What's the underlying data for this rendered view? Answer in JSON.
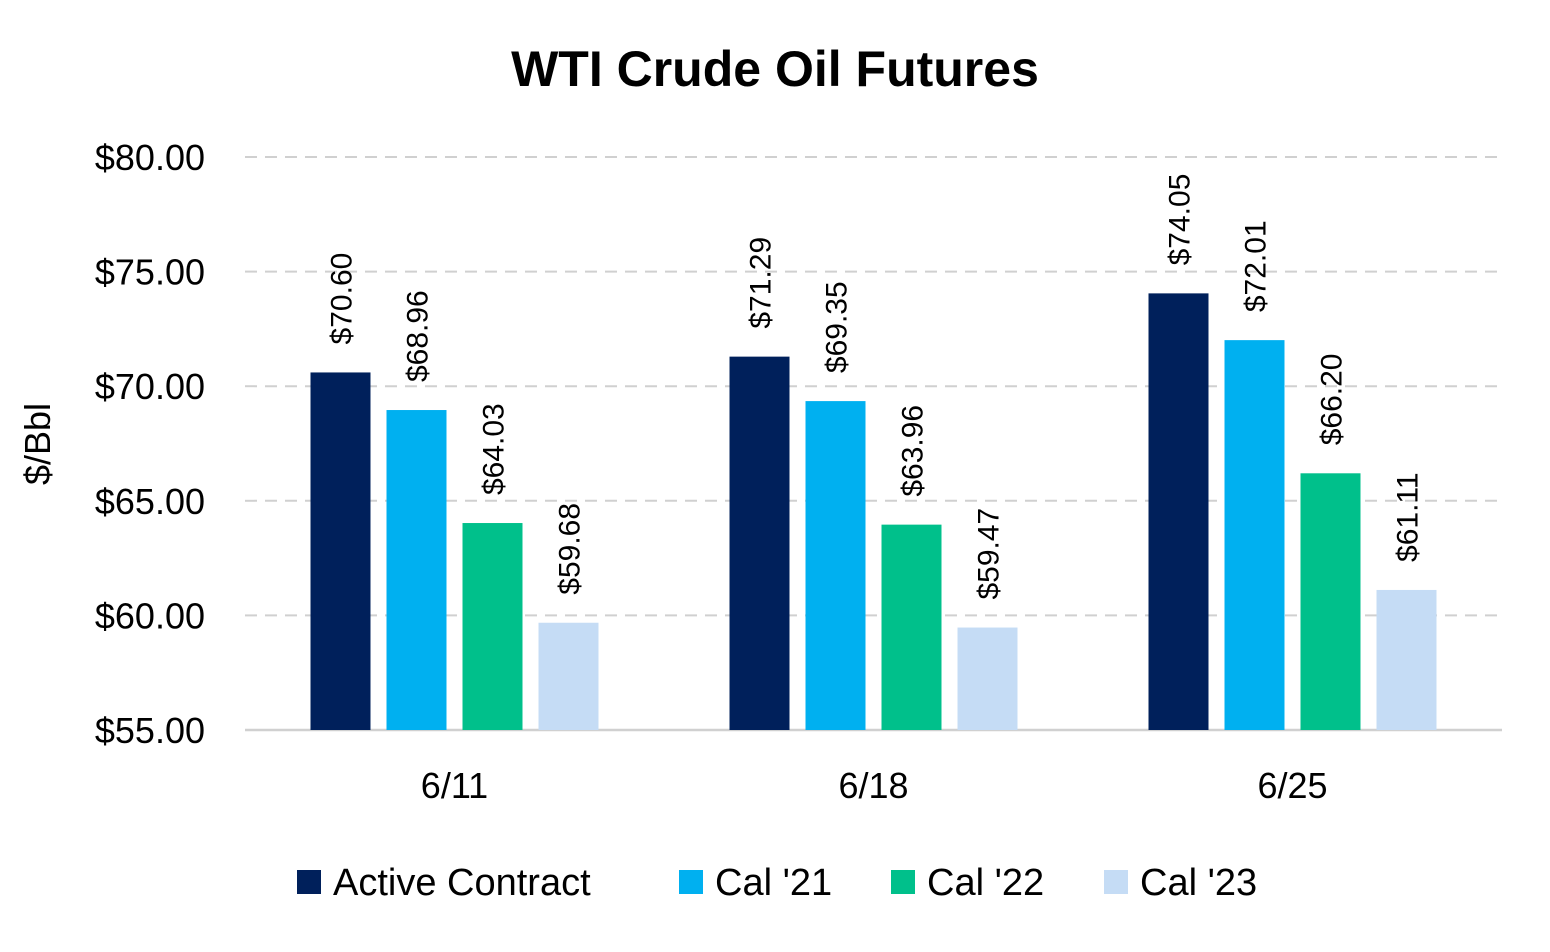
{
  "chart_data": {
    "type": "bar",
    "title": "WTI Crude Oil Futures",
    "xlabel": "",
    "ylabel": "$/Bbl",
    "ylim": [
      55,
      80
    ],
    "yticks": [
      55,
      60,
      65,
      70,
      75,
      80
    ],
    "ytick_labels": [
      "$55.00",
      "$60.00",
      "$65.00",
      "$70.00",
      "$75.00",
      "$80.00"
    ],
    "grid": true,
    "legend_position": "bottom",
    "categories": [
      "6/11",
      "6/18",
      "6/25"
    ],
    "series": [
      {
        "name": "Active Contract",
        "color": "#00205B",
        "values": [
          70.6,
          71.29,
          74.05
        ],
        "labels": [
          "$70.60",
          "$71.29",
          "$74.05"
        ]
      },
      {
        "name": "Cal '21",
        "color": "#00B0F0",
        "values": [
          68.96,
          69.35,
          72.01
        ],
        "labels": [
          "$68.96",
          "$69.35",
          "$72.01"
        ]
      },
      {
        "name": "Cal '22",
        "color": "#00C08B",
        "values": [
          64.03,
          63.96,
          66.2
        ],
        "labels": [
          "$64.03",
          "$63.96",
          "$66.20"
        ]
      },
      {
        "name": "Cal '23",
        "color": "#C5DCF5",
        "values": [
          59.68,
          59.47,
          61.11
        ],
        "labels": [
          "$59.68",
          "$59.47",
          "$61.11"
        ]
      }
    ]
  }
}
